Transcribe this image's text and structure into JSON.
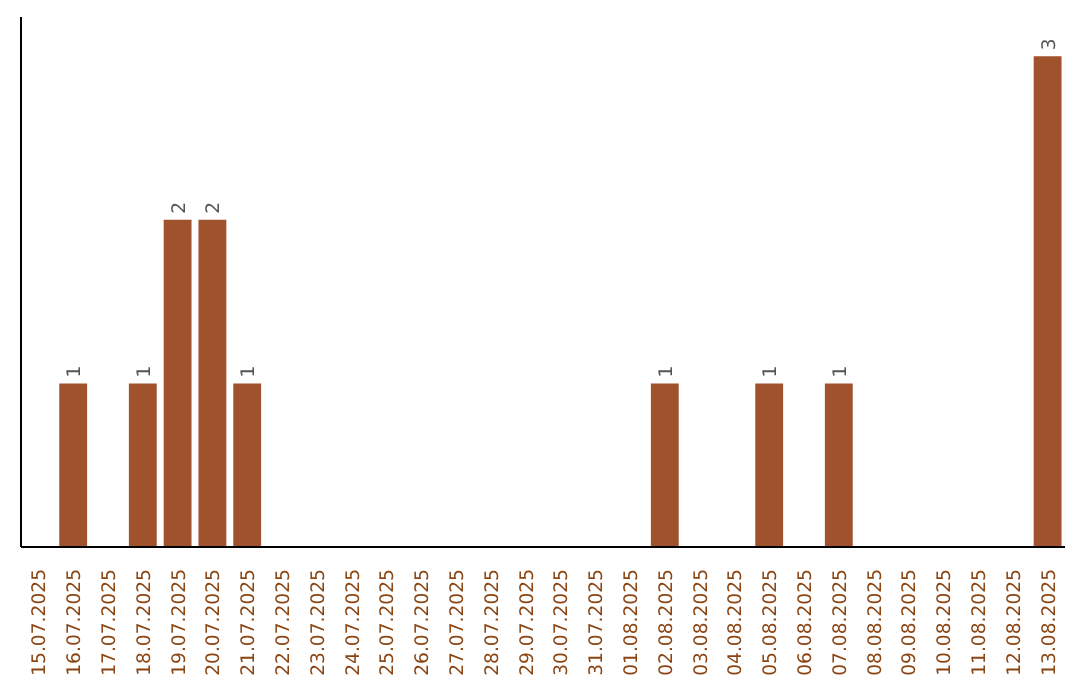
{
  "chart_data": {
    "type": "bar",
    "categories": [
      "15.07.2025",
      "16.07.2025",
      "17.07.2025",
      "18.07.2025",
      "19.07.2025",
      "20.07.2025",
      "21.07.2025",
      "22.07.2025",
      "23.07.2025",
      "24.07.2025",
      "25.07.2025",
      "26.07.2025",
      "27.07.2025",
      "28.07.2025",
      "29.07.2025",
      "30.07.2025",
      "31.07.2025",
      "01.08.2025",
      "02.08.2025",
      "03.08.2025",
      "04.08.2025",
      "05.08.2025",
      "06.08.2025",
      "07.08.2025",
      "08.08.2025",
      "09.08.2025",
      "10.08.2025",
      "11.08.2025",
      "12.08.2025",
      "13.08.2025"
    ],
    "values": [
      0,
      1,
      0,
      1,
      2,
      2,
      1,
      0,
      0,
      0,
      0,
      0,
      0,
      0,
      0,
      0,
      0,
      0,
      1,
      0,
      0,
      1,
      0,
      1,
      0,
      0,
      0,
      0,
      0,
      3
    ],
    "value_labels": [
      null,
      "1",
      null,
      "1",
      "2",
      "2",
      "1",
      null,
      null,
      null,
      null,
      null,
      null,
      null,
      null,
      null,
      null,
      null,
      "1",
      null,
      null,
      "1",
      null,
      "1",
      null,
      null,
      null,
      null,
      null,
      "3"
    ],
    "color": "#a0522d",
    "ylim": [
      0,
      3.0
    ],
    "grid": false,
    "tick_labels": "x"
  }
}
